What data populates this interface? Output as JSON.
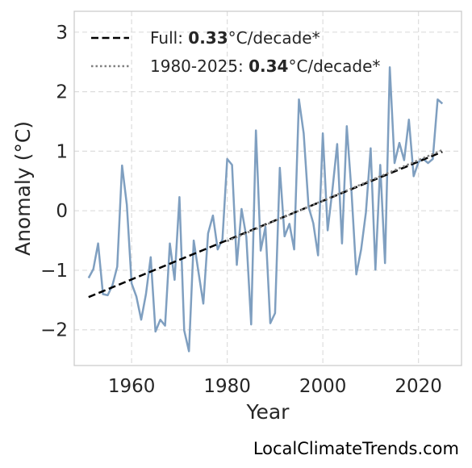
{
  "chart_data": {
    "type": "line",
    "xlabel": "Year",
    "ylabel": "Anomaly (°C)",
    "xlim": [
      1948,
      2029
    ],
    "ylim": [
      -2.6,
      3.35
    ],
    "xticks": [
      1960,
      1980,
      2000,
      2020
    ],
    "yticks": [
      -2,
      -1,
      0,
      1,
      2,
      3
    ],
    "ytick_labels": [
      "−2",
      "−1",
      "0",
      "1",
      "2",
      "3"
    ],
    "grid": true,
    "legend_position": "top-left",
    "series": [
      {
        "style": "solid",
        "color": "#7f9fc0",
        "x": [
          1951,
          1952,
          1953,
          1954,
          1955,
          1956,
          1957,
          1958,
          1959,
          1960,
          1961,
          1962,
          1963,
          1964,
          1965,
          1966,
          1967,
          1968,
          1969,
          1970,
          1971,
          1972,
          1973,
          1974,
          1975,
          1976,
          1977,
          1978,
          1979,
          1980,
          1981,
          1982,
          1983,
          1984,
          1985,
          1986,
          1987,
          1988,
          1989,
          1990,
          1991,
          1992,
          1993,
          1994,
          1995,
          1996,
          1997,
          1998,
          1999,
          2000,
          2001,
          2002,
          2003,
          2004,
          2005,
          2006,
          2007,
          2008,
          2009,
          2010,
          2011,
          2012,
          2013,
          2014,
          2015,
          2016,
          2017,
          2018,
          2019,
          2020,
          2021,
          2022,
          2023,
          2024,
          2025
        ],
        "y": [
          -1.13,
          -0.98,
          -0.55,
          -1.4,
          -1.42,
          -1.25,
          -0.94,
          0.76,
          0.1,
          -1.22,
          -1.44,
          -1.83,
          -1.4,
          -0.78,
          -2.03,
          -1.83,
          -1.93,
          -0.55,
          -1.16,
          0.23,
          -2.01,
          -2.36,
          -0.5,
          -1.04,
          -1.56,
          -0.38,
          -0.08,
          -0.65,
          -0.48,
          0.87,
          0.77,
          -0.91,
          0.03,
          -0.44,
          -1.91,
          1.35,
          -0.67,
          -0.27,
          -1.89,
          -1.72,
          0.72,
          -0.43,
          -0.22,
          -0.65,
          1.87,
          1.3,
          0.07,
          -0.21,
          -0.75,
          1.3,
          -0.33,
          0.35,
          1.12,
          -0.55,
          1.42,
          0.31,
          -1.07,
          -0.65,
          -0.03,
          1.05,
          -0.99,
          0.77,
          -0.88,
          2.41,
          0.8,
          1.14,
          0.85,
          1.53,
          0.58,
          0.82,
          0.87,
          0.8,
          0.87,
          1.87,
          1.8
        ]
      },
      {
        "name": "Full",
        "style": "dashed",
        "color": "#000000",
        "x": [
          1951,
          2025
        ],
        "y": [
          -1.45,
          0.99
        ]
      },
      {
        "name": "1980-2025",
        "style": "dotted",
        "color": "#808080",
        "x": [
          1980,
          2025
        ],
        "y": [
          -0.51,
          1.02
        ]
      }
    ],
    "legend": [
      {
        "prefix": "Full: ",
        "value": "0.33",
        "suffix": "°C/decade*"
      },
      {
        "prefix": "1980-2025: ",
        "value": "0.34",
        "suffix": "°C/decade*"
      }
    ]
  },
  "credit": "LocalClimateTrends.com"
}
